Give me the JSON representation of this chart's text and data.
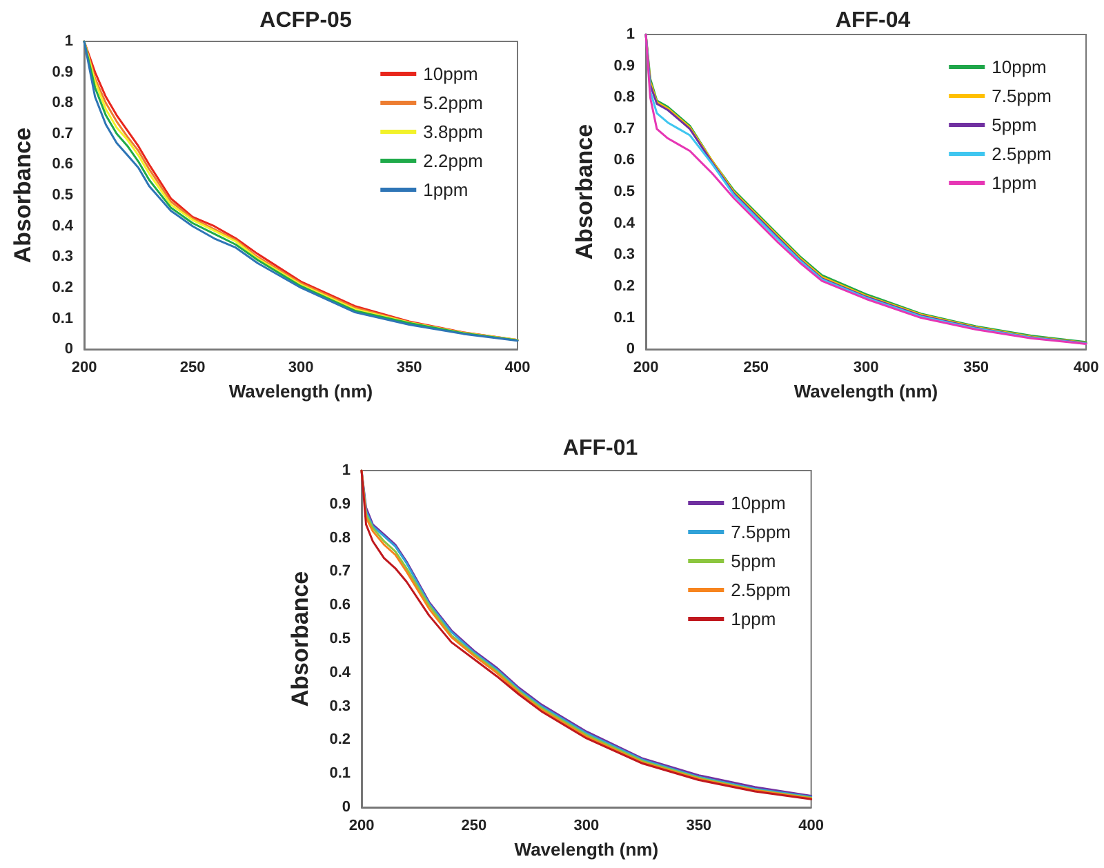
{
  "chart_data": [
    {
      "type": "line",
      "title": "ACFP-05",
      "xlabel": "Wavelength (nm)",
      "ylabel": "Absorbance",
      "xlim": [
        200,
        400
      ],
      "xticks": [
        200,
        250,
        300,
        350,
        400
      ],
      "ylim": [
        0,
        1
      ],
      "yticks": [
        0,
        0.1,
        0.2,
        0.3,
        0.4,
        0.5,
        0.6,
        0.7,
        0.8,
        0.9,
        1
      ],
      "grid": false,
      "legend": "top right",
      "marker": "none",
      "line_style": "solid",
      "x": [
        200,
        205,
        210,
        215,
        220,
        225,
        230,
        240,
        250,
        260,
        270,
        280,
        300,
        325,
        350,
        375,
        400
      ],
      "series": [
        {
          "name": "10ppm",
          "color": "#e8261c",
          "values": [
            1,
            0.9,
            0.82,
            0.76,
            0.71,
            0.66,
            0.6,
            0.49,
            0.43,
            0.4,
            0.36,
            0.31,
            0.22,
            0.14,
            0.09,
            0.055,
            0.03
          ]
        },
        {
          "name": "5.2ppm",
          "color": "#ed7d31",
          "values": [
            1,
            0.88,
            0.8,
            0.74,
            0.69,
            0.645,
            0.585,
            0.48,
            0.425,
            0.39,
            0.355,
            0.3,
            0.215,
            0.135,
            0.088,
            0.054,
            0.03
          ]
        },
        {
          "name": "3.8ppm",
          "color": "#f2f22a",
          "values": [
            1,
            0.87,
            0.78,
            0.72,
            0.68,
            0.63,
            0.57,
            0.47,
            0.42,
            0.385,
            0.35,
            0.295,
            0.21,
            0.13,
            0.087,
            0.053,
            0.03
          ]
        },
        {
          "name": "2.2ppm",
          "color": "#1faa4a",
          "values": [
            1,
            0.85,
            0.76,
            0.7,
            0.66,
            0.61,
            0.55,
            0.46,
            0.41,
            0.375,
            0.34,
            0.29,
            0.205,
            0.125,
            0.085,
            0.052,
            0.029
          ]
        },
        {
          "name": "1ppm",
          "color": "#2e75b6",
          "values": [
            1,
            0.82,
            0.73,
            0.67,
            0.63,
            0.59,
            0.53,
            0.45,
            0.4,
            0.36,
            0.33,
            0.28,
            0.2,
            0.12,
            0.08,
            0.05,
            0.028
          ]
        }
      ]
    },
    {
      "type": "line",
      "title": "AFF-04",
      "xlabel": "Wavelength (nm)",
      "ylabel": "Absorbance",
      "xlim": [
        200,
        400
      ],
      "xticks": [
        200,
        250,
        300,
        350,
        400
      ],
      "ylim": [
        0,
        1
      ],
      "yticks": [
        0,
        0.1,
        0.2,
        0.3,
        0.4,
        0.5,
        0.6,
        0.7,
        0.8,
        0.9,
        1
      ],
      "grid": false,
      "legend": "top right",
      "marker": "none",
      "line_style": "solid",
      "x": [
        200,
        202,
        205,
        210,
        215,
        220,
        230,
        240,
        250,
        260,
        270,
        280,
        300,
        325,
        350,
        375,
        400
      ],
      "series": [
        {
          "name": "10ppm",
          "color": "#1fa64a",
          "values": [
            1,
            0.86,
            0.79,
            0.77,
            0.74,
            0.71,
            0.6,
            0.505,
            0.435,
            0.365,
            0.295,
            0.235,
            0.175,
            0.113,
            0.073,
            0.043,
            0.023
          ]
        },
        {
          "name": "7.5ppm",
          "color": "#ffc000",
          "values": [
            1,
            0.85,
            0.785,
            0.765,
            0.735,
            0.705,
            0.6,
            0.5,
            0.43,
            0.36,
            0.29,
            0.23,
            0.17,
            0.11,
            0.07,
            0.04,
            0.02
          ]
        },
        {
          "name": "5ppm",
          "color": "#7030a0",
          "values": [
            1,
            0.84,
            0.78,
            0.76,
            0.73,
            0.7,
            0.595,
            0.495,
            0.425,
            0.355,
            0.285,
            0.225,
            0.167,
            0.107,
            0.068,
            0.038,
            0.019
          ]
        },
        {
          "name": "2.5ppm",
          "color": "#3fc6f0",
          "values": [
            1,
            0.82,
            0.75,
            0.72,
            0.7,
            0.68,
            0.59,
            0.49,
            0.42,
            0.35,
            0.282,
            0.222,
            0.164,
            0.104,
            0.066,
            0.037,
            0.018
          ]
        },
        {
          "name": "1ppm",
          "color": "#e636b4",
          "values": [
            1,
            0.8,
            0.7,
            0.67,
            0.65,
            0.63,
            0.56,
            0.48,
            0.41,
            0.34,
            0.275,
            0.217,
            0.16,
            0.1,
            0.063,
            0.035,
            0.017
          ]
        }
      ]
    },
    {
      "type": "line",
      "title": "AFF-01",
      "xlabel": "Wavelength (nm)",
      "ylabel": "Absorbance",
      "xlim": [
        200,
        400
      ],
      "xticks": [
        200,
        250,
        300,
        350,
        400
      ],
      "ylim": [
        0,
        1
      ],
      "yticks": [
        0,
        0.1,
        0.2,
        0.3,
        0.4,
        0.5,
        0.6,
        0.7,
        0.8,
        0.9,
        1
      ],
      "grid": false,
      "legend": "top right",
      "marker": "none",
      "line_style": "solid",
      "x": [
        200,
        202,
        205,
        210,
        215,
        220,
        230,
        240,
        250,
        260,
        270,
        280,
        300,
        325,
        350,
        375,
        400
      ],
      "series": [
        {
          "name": "10ppm",
          "color": "#7030a0",
          "values": [
            1,
            0.89,
            0.84,
            0.81,
            0.78,
            0.73,
            0.61,
            0.525,
            0.465,
            0.415,
            0.355,
            0.305,
            0.225,
            0.145,
            0.095,
            0.06,
            0.034
          ]
        },
        {
          "name": "7.5ppm",
          "color": "#31a2d8",
          "values": [
            1,
            0.88,
            0.835,
            0.805,
            0.775,
            0.725,
            0.605,
            0.52,
            0.46,
            0.41,
            0.35,
            0.3,
            0.22,
            0.141,
            0.09,
            0.055,
            0.031
          ]
        },
        {
          "name": "5ppm",
          "color": "#8cc63f",
          "values": [
            1,
            0.87,
            0.83,
            0.79,
            0.76,
            0.71,
            0.6,
            0.51,
            0.455,
            0.405,
            0.345,
            0.295,
            0.215,
            0.137,
            0.087,
            0.052,
            0.028
          ]
        },
        {
          "name": "2.5ppm",
          "color": "#f7841e",
          "values": [
            1,
            0.86,
            0.82,
            0.78,
            0.75,
            0.7,
            0.59,
            0.505,
            0.45,
            0.4,
            0.34,
            0.29,
            0.21,
            0.133,
            0.084,
            0.05,
            0.026
          ]
        },
        {
          "name": "1ppm",
          "color": "#c0181e",
          "values": [
            1,
            0.84,
            0.79,
            0.74,
            0.71,
            0.67,
            0.57,
            0.49,
            0.44,
            0.39,
            0.335,
            0.285,
            0.205,
            0.13,
            0.081,
            0.047,
            0.024
          ]
        }
      ]
    }
  ]
}
